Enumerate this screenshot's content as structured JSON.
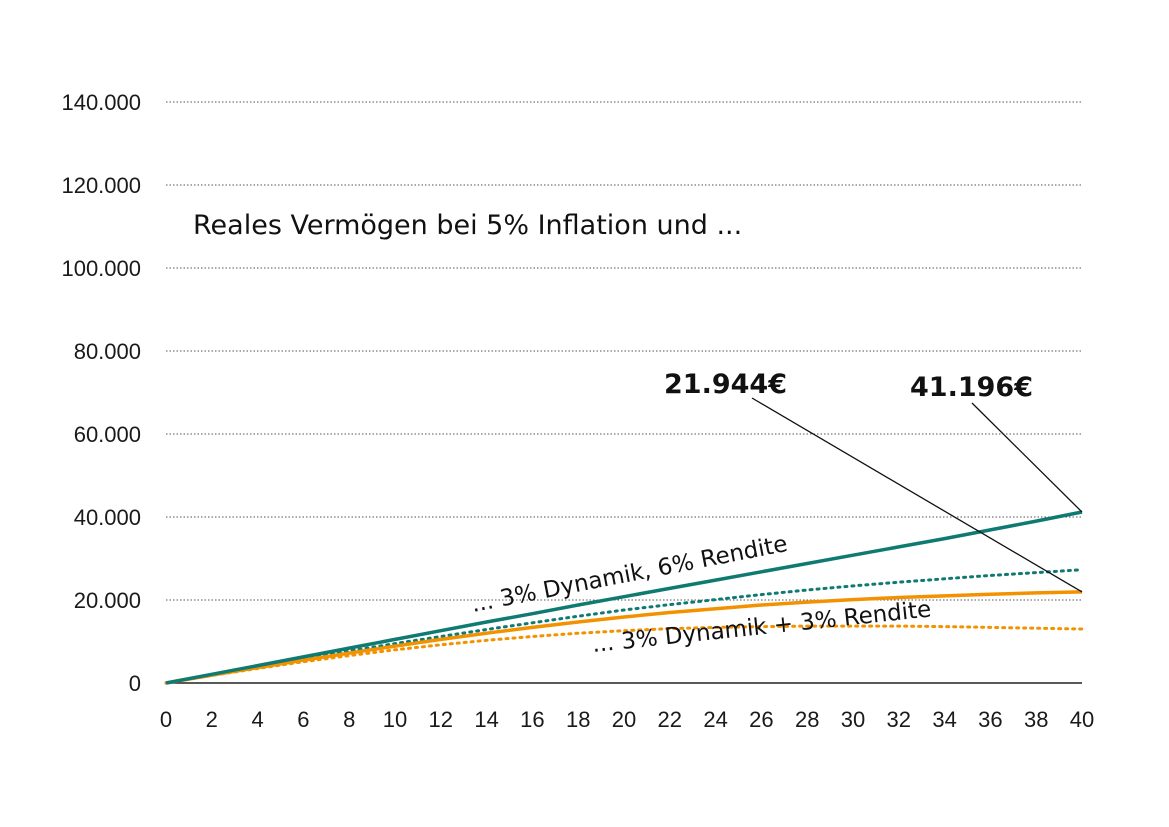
{
  "chart_data": {
    "type": "line",
    "title": "Reales Vermögen bei 5% Inflation und ...",
    "xlabel": "",
    "ylabel": "",
    "xlim": [
      0,
      40
    ],
    "ylim": [
      0,
      140000
    ],
    "x_ticks": [
      "0",
      "2",
      "4",
      "6",
      "8",
      "10",
      "12",
      "14",
      "16",
      "18",
      "20",
      "22",
      "24",
      "26",
      "28",
      "30",
      "32",
      "34",
      "36",
      "38",
      "40"
    ],
    "y_ticks": [
      "0",
      "20.000",
      "40.000",
      "60.000",
      "80.000",
      "100.000",
      "120.000",
      "140.000"
    ],
    "grid": true,
    "x": [
      0,
      2,
      4,
      6,
      8,
      10,
      12,
      14,
      16,
      18,
      20,
      22,
      24,
      26,
      28,
      30,
      32,
      34,
      36,
      38,
      40
    ],
    "series": [
      {
        "name": "... 3% Dynamik, 6% Rendite",
        "color": "#0f7a72",
        "style": "solid",
        "values": [
          0,
          2100,
          4200,
          6300,
          8400,
          10500,
          12600,
          14700,
          16700,
          18800,
          20800,
          22800,
          24800,
          26800,
          28800,
          30800,
          32800,
          34800,
          36900,
          39000,
          41196
        ]
      },
      {
        "name": "",
        "color": "#0f7a72",
        "style": "dotted",
        "values": [
          0,
          2000,
          3900,
          5800,
          7700,
          9500,
          11200,
          12900,
          14500,
          16100,
          17600,
          18900,
          20100,
          21300,
          22400,
          23400,
          24300,
          25100,
          25900,
          26600,
          27300
        ]
      },
      {
        "name": "... 3% Dynamik + 3% Rendite",
        "color": "#f39200",
        "style": "solid",
        "values": [
          0,
          1900,
          3700,
          5500,
          7200,
          8900,
          10500,
          12000,
          13400,
          14700,
          15900,
          17000,
          17900,
          18800,
          19500,
          20100,
          20600,
          21000,
          21400,
          21700,
          21944
        ]
      },
      {
        "name": "",
        "color": "#f39200",
        "style": "dotted",
        "values": [
          0,
          1800,
          3500,
          5100,
          6600,
          8000,
          9200,
          10300,
          11200,
          12000,
          12600,
          13100,
          13400,
          13600,
          13700,
          13700,
          13700,
          13600,
          13400,
          13200,
          13000
        ]
      }
    ],
    "annotations": [
      {
        "text": "21.944€",
        "x": 40,
        "y": 21944
      },
      {
        "text": "41.196€",
        "x": 40,
        "y": 41196
      }
    ]
  }
}
